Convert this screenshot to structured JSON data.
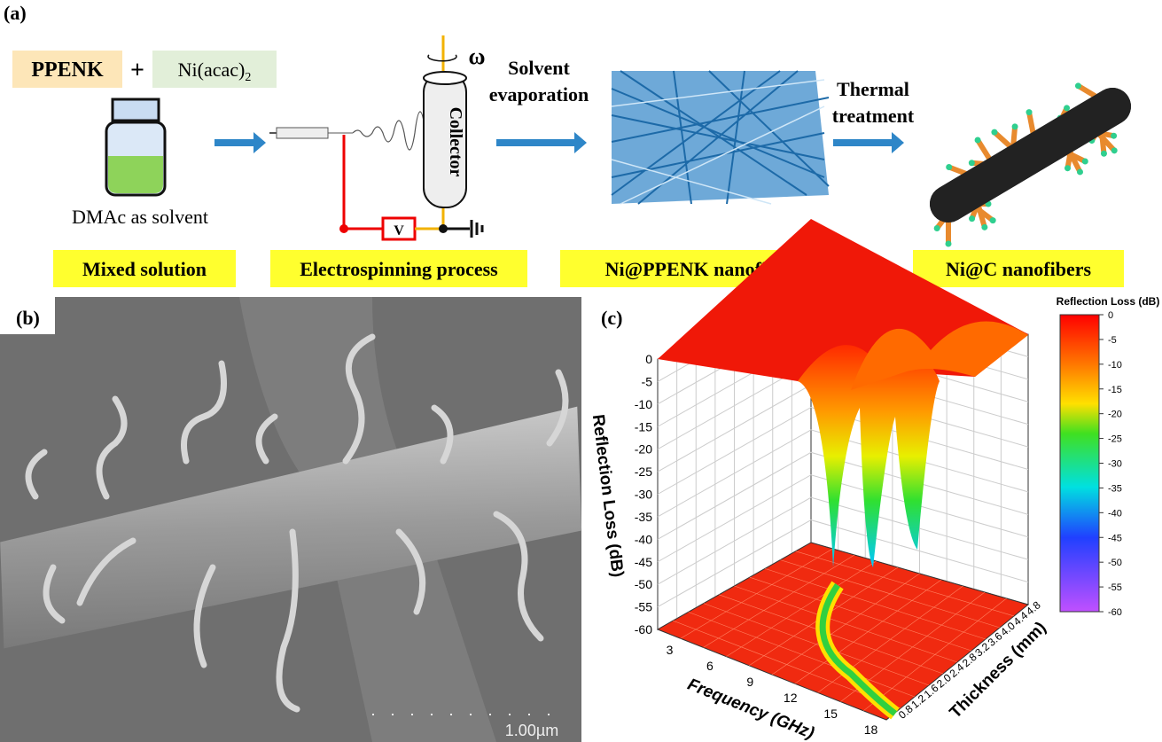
{
  "panel_a": {
    "label": "(a)",
    "ppenk": "PPENK",
    "plus": "+",
    "ni_acac": "Ni(acac)",
    "ni_acac_sub": "2",
    "solvent_note": "DMAc as solvent",
    "omega": "ω",
    "collector": "Collector",
    "voltage": "V",
    "step1": [
      "Solvent",
      "evaporation"
    ],
    "step2": [
      "Thermal",
      "treatment"
    ],
    "captions": [
      "Mixed solution",
      "Electrospinning process",
      "Ni@PPENK nanofibers",
      "Ni@C nanofibers"
    ]
  },
  "panel_b": {
    "label": "(b)",
    "scale_bar": "1.00µm"
  },
  "panel_c": {
    "label": "(c)",
    "z_axis_label": "Reflection Loss (dB)",
    "x_axis_label": "Frequency (GHz)",
    "y_axis_label": "Thickness (mm)",
    "z_ticks": [
      "0",
      "-5",
      "-10",
      "-15",
      "-20",
      "-25",
      "-30",
      "-35",
      "-40",
      "-45",
      "-50",
      "-55",
      "-60"
    ],
    "x_ticks": [
      "3",
      "6",
      "9",
      "12",
      "15",
      "18"
    ],
    "y_ticks": [
      "0.8",
      "1.2",
      "1.6",
      "2.0",
      "2.4",
      "2.8",
      "3.2",
      "3.6",
      "4.0",
      "4.4",
      "4.8"
    ],
    "colorbar_title": "Reflection Loss (dB)",
    "colorbar_ticks": [
      "0",
      "-5",
      "-10",
      "-15",
      "-20",
      "-25",
      "-30",
      "-35",
      "-40",
      "-45",
      "-50",
      "-55",
      "-60"
    ]
  }
}
